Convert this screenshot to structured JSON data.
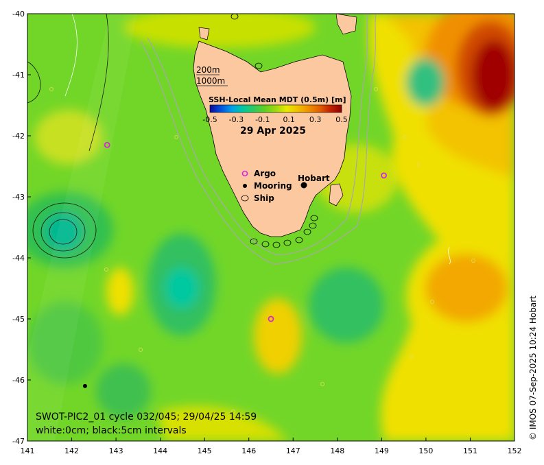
{
  "map": {
    "title_date": "29 Apr 2025",
    "colorbar_title": "SSH-Local Mean MDT (0.5m) [m]",
    "colorbar_ticks": [
      "-0.5",
      "-0.3",
      "-0.1",
      "0.1",
      "0.3",
      "0.5"
    ],
    "colorbar_range": [
      -0.5,
      0.5
    ],
    "colorbar_colors": [
      "#0a0a9a",
      "#0050e0",
      "#00a0e8",
      "#00c8a0",
      "#30c860",
      "#60d020",
      "#a0d810",
      "#e8e800",
      "#f0c000",
      "#f09000",
      "#e06000",
      "#c02000",
      "#900000"
    ],
    "depth_contours": [
      "200m",
      "1000m"
    ],
    "legend": {
      "argo_label": "Argo",
      "mooring_label": "Mooring",
      "ship_label": "Ship"
    },
    "city": "Hobart",
    "satellite_info": "SWOT-PIC2_01 cycle 032/045; 29/04/25 14:59",
    "contour_info": "white:0cm; black:5cm intervals",
    "credit": "© IMOS 07-Sep-2025 10:24 Hobart",
    "x_ticks": [
      "141",
      "142",
      "143",
      "144",
      "145",
      "146",
      "147",
      "148",
      "149",
      "150",
      "151",
      "152"
    ],
    "y_ticks": [
      "-40",
      "-41",
      "-42",
      "-43",
      "-44",
      "-45",
      "-46",
      "-47"
    ],
    "lon_range": [
      141,
      152
    ],
    "lat_range": [
      -47,
      -40
    ],
    "argo_floats": [
      {
        "lon": 142.8,
        "lat": -42.15
      },
      {
        "lon": 149.05,
        "lat": -42.65
      },
      {
        "lon": 146.5,
        "lat": -45.0
      }
    ],
    "moorings": [
      {
        "lon": 142.3,
        "lat": -46.1
      }
    ]
  }
}
